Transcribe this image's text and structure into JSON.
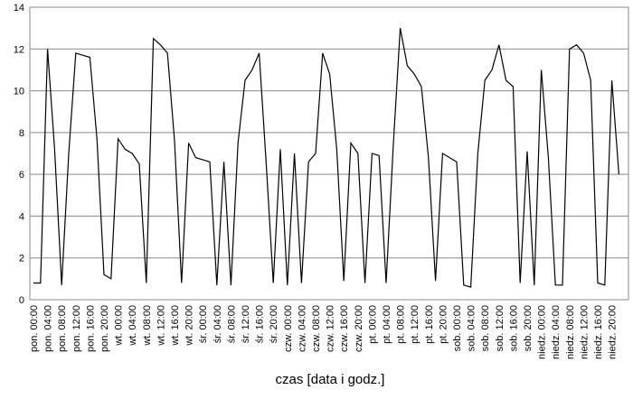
{
  "chart_data": {
    "type": "line",
    "x_label": "czas [data i godz.]",
    "categories": [
      "pon. 00:00",
      null,
      "pon. 04:00",
      null,
      "pon. 08:00",
      null,
      "pon. 12:00",
      null,
      "pon. 16:00",
      null,
      "pon. 20:00",
      null,
      "wt. 00:00",
      null,
      "wt. 04:00",
      null,
      "wt. 08:00",
      null,
      "wt. 12:00",
      null,
      "wt. 16:00",
      null,
      "wt. 20:00",
      null,
      "śr. 00:00",
      null,
      "śr. 04:00",
      null,
      "śr. 08:00",
      null,
      "śr. 12:00",
      null,
      "śr. 16:00",
      null,
      "śr. 20:00",
      null,
      "czw. 00:00",
      null,
      "czw. 04:00",
      null,
      "czw. 08:00",
      null,
      "czw. 12:00",
      null,
      "czw. 16:00",
      null,
      "czw. 20:00",
      null,
      "pt. 00:00",
      null,
      "pt. 04:00",
      null,
      "pt. 08:00",
      null,
      "pt. 12:00",
      null,
      "pt. 16:00",
      null,
      "pt. 20:00",
      null,
      "sob. 00:00",
      null,
      "sob. 04:00",
      null,
      "sob. 08:00",
      null,
      "sob. 12:00",
      null,
      "sob. 16:00",
      null,
      "sob. 20:00",
      null,
      "niedz. 00:00",
      null,
      "niedz. 04:00",
      null,
      "niedz. 08:00",
      null,
      "niedz. 12:00",
      null,
      "niedz. 16:00",
      null,
      "niedz. 20:00",
      null
    ],
    "values": [
      0.8,
      0.8,
      12,
      7.2,
      0.7,
      7.0,
      11.8,
      11.7,
      11.6,
      7.7,
      1.2,
      1.0,
      7.7,
      7.2,
      7.0,
      6.5,
      0.8,
      12.5,
      12.2,
      11.8,
      7.6,
      0.8,
      7.5,
      6.8,
      6.7,
      6.6,
      0.7,
      6.6,
      0.7,
      7.5,
      10.5,
      11.0,
      11.8,
      6.5,
      0.8,
      7.2,
      0.7,
      7.0,
      0.8,
      6.6,
      7.0,
      11.8,
      10.8,
      7.2,
      0.9,
      7.5,
      7.0,
      0.8,
      7.0,
      6.9,
      0.8,
      7.3,
      13.0,
      11.2,
      10.8,
      10.2,
      6.8,
      0.9,
      7.0,
      6.8,
      6.6,
      0.7,
      0.6,
      7.0,
      10.5,
      11.0,
      12.2,
      10.5,
      10.2,
      0.8,
      7.1,
      0.7,
      11.0,
      6.8,
      0.7,
      0.7,
      12.0,
      12.2,
      11.8,
      10.5,
      0.8,
      0.7,
      10.5,
      6.0
    ],
    "color": "#000000",
    "ylim": [
      0,
      14
    ],
    "yticks": [
      0,
      2,
      4,
      6,
      8,
      10,
      12,
      14
    ],
    "grid": true
  }
}
